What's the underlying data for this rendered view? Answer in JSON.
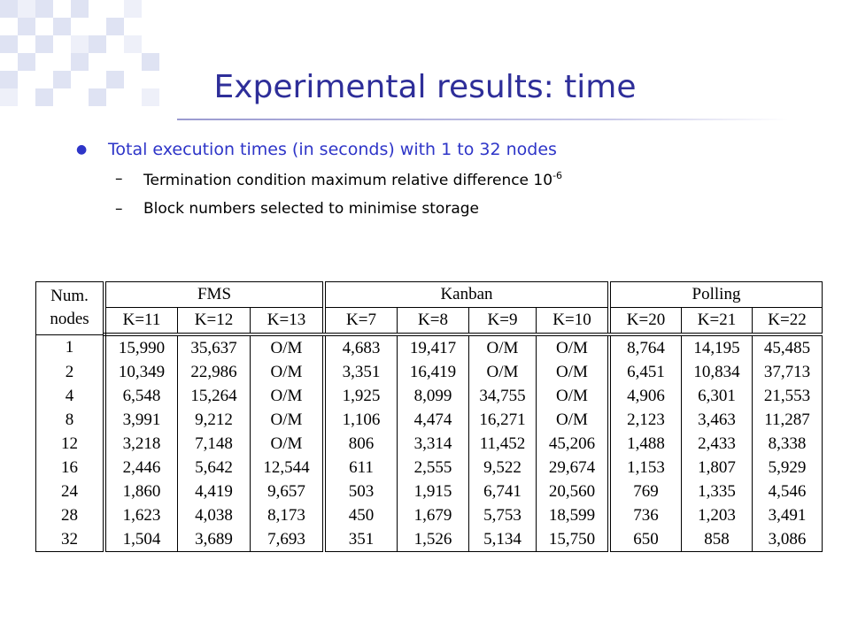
{
  "header": {
    "title": "Experimental results: time"
  },
  "bullets": {
    "main": "Total execution times (in seconds) with 1 to 32 nodes",
    "sub": [
      {
        "text": "Termination condition maximum relative difference 10",
        "superscript": "-6"
      },
      {
        "text": "Block numbers selected to minimise storage"
      }
    ]
  },
  "table": {
    "num_label": [
      "Num.",
      "nodes"
    ],
    "groups": [
      {
        "name": "FMS",
        "columns": [
          "K=11",
          "K=12",
          "K=13"
        ]
      },
      {
        "name": "Kanban",
        "columns": [
          "K=7",
          "K=8",
          "K=9",
          "K=10"
        ]
      },
      {
        "name": "Polling",
        "columns": [
          "K=20",
          "K=21",
          "K=22"
        ]
      }
    ],
    "rows": [
      [
        "1",
        "15,990",
        "35,637",
        "O/M",
        "4,683",
        "19,417",
        "O/M",
        "O/M",
        "8,764",
        "14,195",
        "45,485"
      ],
      [
        "2",
        "10,349",
        "22,986",
        "O/M",
        "3,351",
        "16,419",
        "O/M",
        "O/M",
        "6,451",
        "10,834",
        "37,713"
      ],
      [
        "4",
        "6,548",
        "15,264",
        "O/M",
        "1,925",
        "8,099",
        "34,755",
        "O/M",
        "4,906",
        "6,301",
        "21,553"
      ],
      [
        "8",
        "3,991",
        "9,212",
        "O/M",
        "1,106",
        "4,474",
        "16,271",
        "O/M",
        "2,123",
        "3,463",
        "11,287"
      ],
      [
        "12",
        "3,218",
        "7,148",
        "O/M",
        "806",
        "3,314",
        "11,452",
        "45,206",
        "1,488",
        "2,433",
        "8,338"
      ],
      [
        "16",
        "2,446",
        "5,642",
        "12,544",
        "611",
        "2,555",
        "9,522",
        "29,674",
        "1,153",
        "1,807",
        "5,929"
      ],
      [
        "24",
        "1,860",
        "4,419",
        "9,657",
        "503",
        "1,915",
        "6,741",
        "20,560",
        "769",
        "1,335",
        "4,546"
      ],
      [
        "28",
        "1,623",
        "4,038",
        "8,173",
        "450",
        "1,679",
        "5,753",
        "18,599",
        "736",
        "1,203",
        "3,491"
      ],
      [
        "32",
        "1,504",
        "3,689",
        "7,693",
        "351",
        "1,526",
        "5,134",
        "15,750",
        "650",
        "858",
        "3,086"
      ]
    ]
  }
}
